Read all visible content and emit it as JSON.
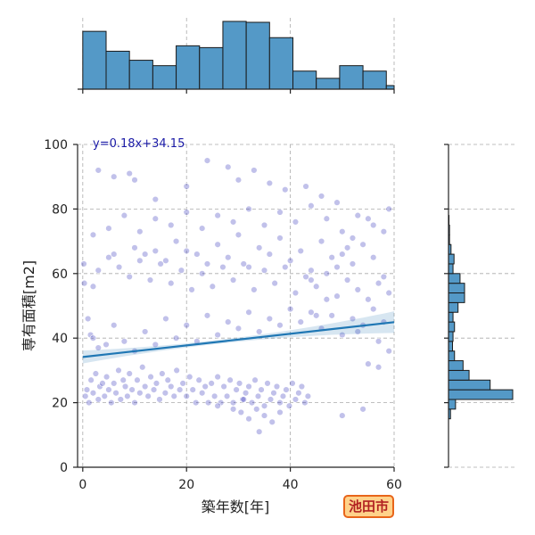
{
  "chart_data": {
    "type": "scatter",
    "xlabel": "築年数[年]",
    "ylabel": "専有面積[m2]",
    "xlim": [
      -1,
      60
    ],
    "ylim": [
      0,
      100
    ],
    "x_ticks": [
      0,
      20,
      40,
      60
    ],
    "y_ticks": [
      0,
      20,
      40,
      60,
      80,
      100
    ],
    "grid": true,
    "annotation": "y=0.18x+34.15",
    "regression": {
      "slope": 0.18,
      "intercept": 34.15
    },
    "colors": {
      "points": "#1f1fb4",
      "regression": "#1f77b4",
      "hist": "#5499c7"
    },
    "x_histogram": {
      "bin_edges": [
        0,
        4.5,
        9,
        13.5,
        18,
        22.5,
        27,
        31.5,
        36,
        40.5,
        45,
        49.5,
        54,
        58.5,
        60
      ],
      "counts": [
        64,
        42,
        32,
        26,
        48,
        46,
        75,
        74,
        57,
        20,
        12,
        26,
        20,
        4
      ]
    },
    "y_histogram": {
      "bin_edges": [
        0,
        3,
        6,
        9,
        12,
        15,
        18,
        21,
        24,
        27,
        30,
        33,
        36,
        39,
        42,
        45,
        48,
        51,
        54,
        57,
        60,
        63,
        66,
        69,
        72,
        75,
        78,
        81,
        84,
        87,
        90,
        93,
        96,
        99,
        100
      ],
      "counts": [
        0,
        0,
        0,
        0,
        0,
        4,
        14,
        128,
        83,
        41,
        29,
        12,
        8,
        9,
        12,
        9,
        19,
        32,
        32,
        23,
        9,
        11,
        5,
        2,
        2,
        1,
        0,
        0,
        0,
        0,
        0,
        0,
        0,
        0
      ]
    },
    "points": [
      [
        0.5,
        22
      ],
      [
        0.8,
        24
      ],
      [
        1.2,
        20
      ],
      [
        1.6,
        27
      ],
      [
        2,
        23
      ],
      [
        2.5,
        29
      ],
      [
        3,
        21
      ],
      [
        3.3,
        25
      ],
      [
        3.8,
        26
      ],
      [
        4.2,
        22
      ],
      [
        4.6,
        28
      ],
      [
        5,
        24
      ],
      [
        5.5,
        20
      ],
      [
        6,
        26
      ],
      [
        6.4,
        23
      ],
      [
        6.9,
        30
      ],
      [
        7.3,
        21
      ],
      [
        7.8,
        27
      ],
      [
        8.2,
        25
      ],
      [
        8.6,
        22
      ],
      [
        9,
        29
      ],
      [
        9.5,
        24
      ],
      [
        10,
        20
      ],
      [
        10.5,
        27
      ],
      [
        11,
        23
      ],
      [
        11.5,
        31
      ],
      [
        12,
        25
      ],
      [
        12.6,
        22
      ],
      [
        13.1,
        28
      ],
      [
        13.7,
        24
      ],
      [
        14.2,
        26
      ],
      [
        14.8,
        21
      ],
      [
        15.3,
        29
      ],
      [
        15.9,
        23
      ],
      [
        16.4,
        27
      ],
      [
        17,
        25
      ],
      [
        17.6,
        22
      ],
      [
        18.1,
        30
      ],
      [
        18.7,
        24
      ],
      [
        19.3,
        26
      ],
      [
        20,
        22
      ],
      [
        20.6,
        28
      ],
      [
        21.2,
        24
      ],
      [
        21.8,
        20
      ],
      [
        22.4,
        27
      ],
      [
        23,
        23
      ],
      [
        23.6,
        25
      ],
      [
        24.2,
        20
      ],
      [
        24.8,
        26
      ],
      [
        25.4,
        22
      ],
      [
        26,
        28
      ],
      [
        26.6,
        20
      ],
      [
        27.2,
        25
      ],
      [
        27.8,
        22
      ],
      [
        28.4,
        27
      ],
      [
        29,
        20
      ],
      [
        29.6,
        24
      ],
      [
        30.2,
        26
      ],
      [
        30.8,
        21
      ],
      [
        31.4,
        23
      ],
      [
        32,
        25
      ],
      [
        32.6,
        20
      ],
      [
        33.2,
        27
      ],
      [
        33.8,
        22
      ],
      [
        34.4,
        24
      ],
      [
        35,
        19
      ],
      [
        35.6,
        26
      ],
      [
        36.2,
        21
      ],
      [
        36.8,
        23
      ],
      [
        37.4,
        25
      ],
      [
        38,
        20
      ],
      [
        38.6,
        22
      ],
      [
        39.2,
        24
      ],
      [
        39.8,
        19
      ],
      [
        40.4,
        26
      ],
      [
        41,
        21
      ],
      [
        41.6,
        23
      ],
      [
        42.2,
        25
      ],
      [
        42.8,
        20
      ],
      [
        43.4,
        22
      ],
      [
        29,
        18
      ],
      [
        30.5,
        17
      ],
      [
        32,
        15
      ],
      [
        33.5,
        18
      ],
      [
        35,
        16
      ],
      [
        36.5,
        14
      ],
      [
        38,
        17
      ],
      [
        34,
        11
      ],
      [
        31,
        21
      ],
      [
        26,
        19
      ],
      [
        1,
        46
      ],
      [
        1.5,
        41
      ],
      [
        0.3,
        57
      ],
      [
        0.2,
        63
      ],
      [
        2,
        40
      ],
      [
        3,
        37
      ],
      [
        4.5,
        38
      ],
      [
        6,
        44
      ],
      [
        8,
        39
      ],
      [
        10,
        36
      ],
      [
        12,
        42
      ],
      [
        14,
        38
      ],
      [
        16,
        46
      ],
      [
        18,
        40
      ],
      [
        20,
        44
      ],
      [
        22,
        39
      ],
      [
        24,
        47
      ],
      [
        26,
        41
      ],
      [
        28,
        45
      ],
      [
        30,
        43
      ],
      [
        32,
        48
      ],
      [
        34,
        42
      ],
      [
        36,
        46
      ],
      [
        38,
        44
      ],
      [
        40,
        49
      ],
      [
        42,
        45
      ],
      [
        44,
        48
      ],
      [
        46,
        43
      ],
      [
        48,
        47
      ],
      [
        50,
        41
      ],
      [
        52,
        46
      ],
      [
        54,
        44
      ],
      [
        56,
        49
      ],
      [
        58,
        45
      ],
      [
        59,
        54
      ],
      [
        57,
        57
      ],
      [
        55,
        52
      ],
      [
        53,
        55
      ],
      [
        51,
        58
      ],
      [
        49,
        53
      ],
      [
        47,
        60
      ],
      [
        45,
        56
      ],
      [
        43,
        59
      ],
      [
        41,
        54
      ],
      [
        39,
        62
      ],
      [
        37,
        57
      ],
      [
        35,
        61
      ],
      [
        33,
        55
      ],
      [
        31,
        63
      ],
      [
        29,
        58
      ],
      [
        27,
        62
      ],
      [
        25,
        56
      ],
      [
        23,
        60
      ],
      [
        21,
        55
      ],
      [
        19,
        61
      ],
      [
        17,
        57
      ],
      [
        15,
        63
      ],
      [
        13,
        58
      ],
      [
        11,
        64
      ],
      [
        9,
        59
      ],
      [
        7,
        62
      ],
      [
        5,
        65
      ],
      [
        3,
        61
      ],
      [
        2,
        56
      ],
      [
        6,
        66
      ],
      [
        10,
        68
      ],
      [
        14,
        67
      ],
      [
        18,
        70
      ],
      [
        22,
        66
      ],
      [
        26,
        69
      ],
      [
        30,
        72
      ],
      [
        34,
        68
      ],
      [
        38,
        71
      ],
      [
        42,
        67
      ],
      [
        46,
        70
      ],
      [
        50,
        66
      ],
      [
        54,
        69
      ],
      [
        58,
        73
      ],
      [
        56,
        65
      ],
      [
        52,
        63
      ],
      [
        48,
        65
      ],
      [
        44,
        61
      ],
      [
        40,
        64
      ],
      [
        36,
        66
      ],
      [
        32,
        62
      ],
      [
        28,
        65
      ],
      [
        24,
        63
      ],
      [
        20,
        67
      ],
      [
        16,
        64
      ],
      [
        12,
        66
      ],
      [
        2,
        72
      ],
      [
        5,
        74
      ],
      [
        8,
        78
      ],
      [
        11,
        73
      ],
      [
        14,
        77
      ],
      [
        17,
        75
      ],
      [
        20,
        79
      ],
      [
        23,
        74
      ],
      [
        26,
        78
      ],
      [
        29,
        76
      ],
      [
        32,
        80
      ],
      [
        35,
        75
      ],
      [
        38,
        79
      ],
      [
        41,
        76
      ],
      [
        44,
        81
      ],
      [
        47,
        77
      ],
      [
        50,
        73
      ],
      [
        53,
        78
      ],
      [
        56,
        75
      ],
      [
        59,
        80
      ],
      [
        3,
        92
      ],
      [
        6,
        90
      ],
      [
        9,
        91
      ],
      [
        10,
        89
      ],
      [
        14,
        83
      ],
      [
        20,
        87
      ],
      [
        24,
        95
      ],
      [
        28,
        93
      ],
      [
        30,
        89
      ],
      [
        33,
        92
      ],
      [
        36,
        88
      ],
      [
        39,
        86
      ],
      [
        43,
        87
      ],
      [
        46,
        84
      ],
      [
        49,
        82
      ],
      [
        52,
        71
      ],
      [
        55,
        77
      ],
      [
        58,
        59
      ],
      [
        57,
        39
      ],
      [
        55,
        32
      ],
      [
        50,
        16
      ],
      [
        54,
        18
      ],
      [
        57,
        31
      ],
      [
        59,
        36
      ],
      [
        53,
        42
      ],
      [
        51,
        68
      ],
      [
        49,
        62
      ],
      [
        47,
        52
      ],
      [
        45,
        47
      ],
      [
        44,
        58
      ]
    ]
  },
  "badge": {
    "city": "池田市"
  }
}
